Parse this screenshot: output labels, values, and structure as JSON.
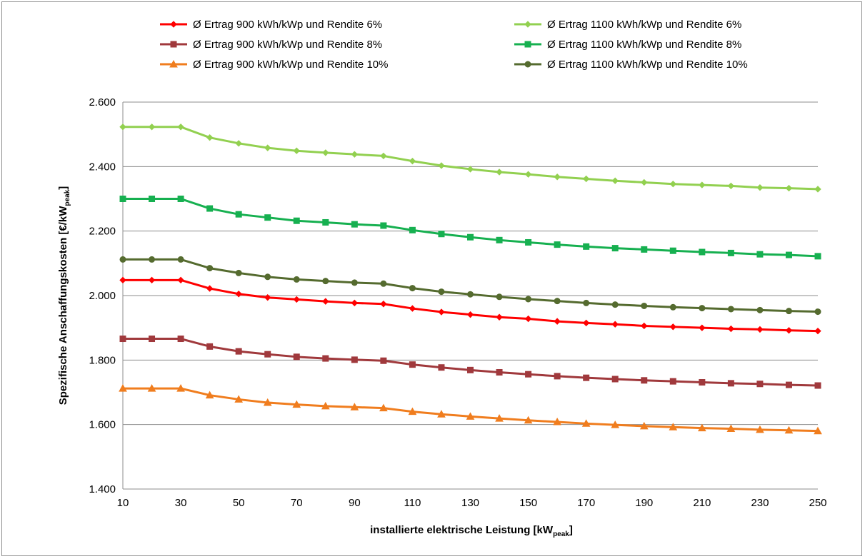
{
  "chart_data": {
    "type": "line",
    "xlabel": "installierte elektrische Leistung [kW",
    "xlabel_sub": "peak",
    "xlabel_end": "]",
    "ylabel": "Spezifische Anschaffungskosten [€/kW",
    "ylabel_sub": "peak",
    "ylabel_end": "]",
    "ylim": [
      1400,
      2600
    ],
    "yticks": [
      1400,
      1600,
      1800,
      2000,
      2200,
      2400,
      2600
    ],
    "ytick_labels": [
      "1.400",
      "1.600",
      "1.800",
      "2.000",
      "2.200",
      "2.400",
      "2.600"
    ],
    "xticks": [
      10,
      30,
      50,
      70,
      90,
      110,
      130,
      150,
      170,
      190,
      210,
      230,
      250
    ],
    "xtick_labels": [
      "10",
      "30",
      "50",
      "70",
      "90",
      "110",
      "130",
      "150",
      "170",
      "190",
      "210",
      "230",
      "250"
    ],
    "grid": "horizontal",
    "legend_position": "top",
    "x": [
      10,
      20,
      30,
      40,
      50,
      60,
      70,
      80,
      90,
      100,
      110,
      120,
      130,
      140,
      150,
      160,
      170,
      180,
      190,
      200,
      210,
      220,
      230,
      240,
      250
    ],
    "series": [
      {
        "name": "Ø Ertrag  900 kWh/kWp und Rendite 6%",
        "color": "#ff0000",
        "marker": "diamond",
        "values": [
          2048,
          2048,
          2048,
          2022,
          2005,
          1994,
          1988,
          1982,
          1977,
          1974,
          1960,
          1949,
          1941,
          1933,
          1928,
          1920,
          1915,
          1911,
          1906,
          1903,
          1900,
          1897,
          1895,
          1892,
          1890
        ]
      },
      {
        "name": "Ø Ertrag  900 kWh/kWp und Rendite 8%",
        "color": "#a0393c",
        "marker": "square",
        "values": [
          1866,
          1866,
          1866,
          1842,
          1827,
          1818,
          1810,
          1805,
          1801,
          1798,
          1786,
          1777,
          1769,
          1762,
          1756,
          1750,
          1745,
          1741,
          1737,
          1734,
          1731,
          1728,
          1726,
          1723,
          1721
        ]
      },
      {
        "name": "Ø Ertrag  900 kWh/kWp und Rendite 10%",
        "color": "#f07d1e",
        "marker": "triangle",
        "values": [
          1712,
          1712,
          1712,
          1691,
          1678,
          1668,
          1662,
          1657,
          1654,
          1651,
          1640,
          1632,
          1625,
          1619,
          1613,
          1608,
          1603,
          1599,
          1595,
          1592,
          1589,
          1587,
          1584,
          1582,
          1580
        ]
      },
      {
        "name": "Ø Ertrag  1100 kWh/kWp und Rendite 6%",
        "color": "#92d050",
        "marker": "diamond",
        "values": [
          2523,
          2523,
          2523,
          2490,
          2472,
          2458,
          2449,
          2443,
          2438,
          2433,
          2417,
          2403,
          2392,
          2383,
          2376,
          2368,
          2362,
          2356,
          2351,
          2346,
          2343,
          2340,
          2335,
          2333,
          2330
        ]
      },
      {
        "name": "Ø Ertrag  1100 kWh/kWp und Rendite 8%",
        "color": "#16b050",
        "marker": "square",
        "values": [
          2300,
          2300,
          2300,
          2270,
          2252,
          2242,
          2232,
          2227,
          2221,
          2217,
          2203,
          2191,
          2181,
          2172,
          2165,
          2158,
          2152,
          2147,
          2143,
          2139,
          2135,
          2132,
          2128,
          2126,
          2122
        ]
      },
      {
        "name": "Ø Ertrag  1100 kWh/kWp und Rendite 10%",
        "color": "#556b2f",
        "marker": "circle",
        "values": [
          2112,
          2112,
          2112,
          2085,
          2070,
          2058,
          2050,
          2045,
          2040,
          2037,
          2023,
          2012,
          2004,
          1996,
          1989,
          1983,
          1977,
          1972,
          1968,
          1964,
          1961,
          1958,
          1955,
          1952,
          1950
        ]
      }
    ]
  }
}
